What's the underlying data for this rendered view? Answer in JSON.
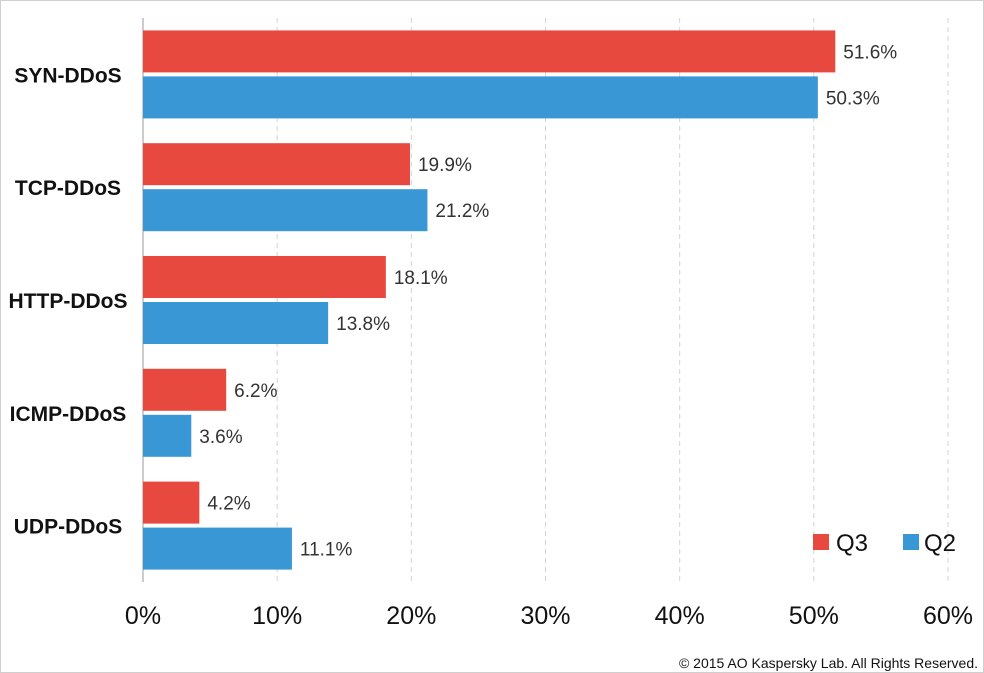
{
  "chart_data": {
    "type": "bar",
    "orientation": "horizontal",
    "categories": [
      "SYN-DDoS",
      "TCP-DDoS",
      "HTTP-DDoS",
      "ICMP-DDoS",
      "UDP-DDoS"
    ],
    "series": [
      {
        "name": "Q3",
        "color": "#e8493f",
        "values": [
          51.6,
          19.9,
          18.1,
          6.2,
          4.2
        ],
        "labels": [
          "51.6%",
          "19.9%",
          "18.1%",
          "6.2%",
          "4.2%"
        ]
      },
      {
        "name": "Q2",
        "color": "#3a97d6",
        "values": [
          50.3,
          21.2,
          13.8,
          3.6,
          11.1
        ],
        "labels": [
          "50.3%",
          "21.2%",
          "13.8%",
          "3.6%",
          "11.1%"
        ]
      }
    ],
    "xlim": [
      0,
      60
    ],
    "xticks": [
      0,
      10,
      20,
      30,
      40,
      50,
      60
    ],
    "xtick_labels": [
      "0%",
      "10%",
      "20%",
      "30%",
      "40%",
      "50%",
      "60%"
    ],
    "grid": "vertical-dashed",
    "legend": "bottom-right"
  },
  "footer": {
    "copyright": "© 2015 AO Kaspersky Lab. All Rights Reserved."
  }
}
